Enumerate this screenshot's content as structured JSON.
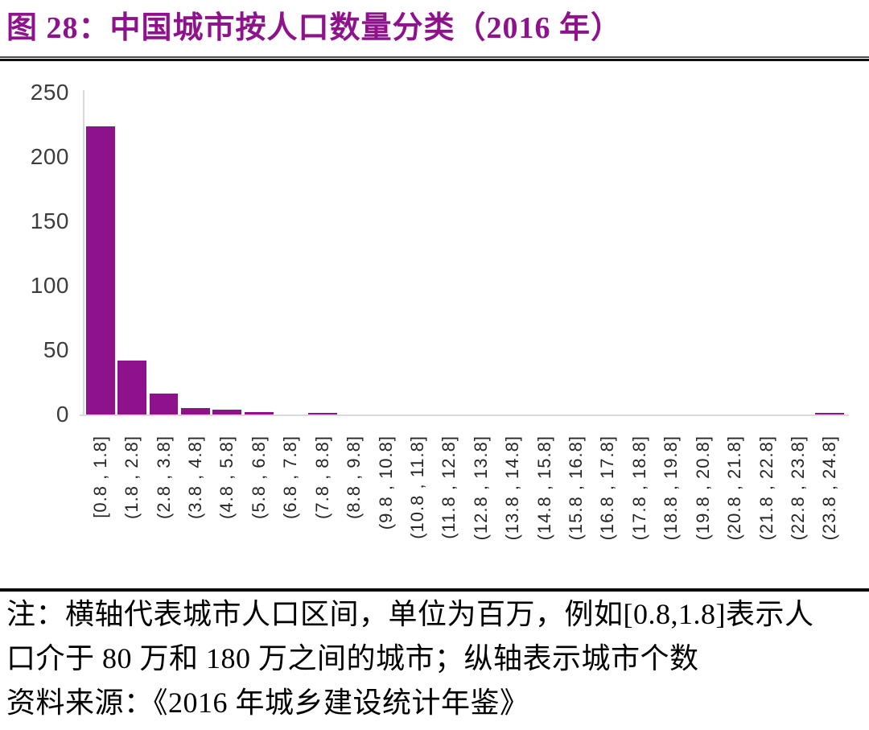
{
  "title": "图 28：中国城市按人口数量分类（2016 年）",
  "notes": {
    "line1": "注：横轴代表城市人口区间，单位为百万，例如[0.8,1.8]表示人",
    "line2": "口介于 80 万和 180 万之间的城市；纵轴表示城市个数",
    "source": "资料来源：《2016 年城乡建设统计年鉴》"
  },
  "colors": {
    "bar": "#8d128b",
    "title_text": "#8d128b",
    "axis_line": "#d9d9d9",
    "tick_label": "#3d3d3d",
    "note_text": "#000000"
  },
  "chart_data": {
    "type": "bar",
    "title": "中国城市按人口数量分类（2016 年）",
    "categories": [
      "[0.8 , 1.8]",
      "(1.8 , 2.8]",
      "(2.8 , 3.8]",
      "(3.8 , 4.8]",
      "(4.8 , 5.8]",
      "(5.8 , 6.8]",
      "(6.8 , 7.8]",
      "(7.8 , 8.8]",
      "(8.8 , 9.8]",
      "(9.8 , 10.8]",
      "(10.8 , 11.8]",
      "(11.8 , 12.8]",
      "(12.8 , 13.8]",
      "(13.8 , 14.8]",
      "(14.8 , 15.8]",
      "(15.8 , 16.8]",
      "(16.8 , 17.8]",
      "(17.8 , 18.8]",
      "(18.8 , 19.8]",
      "(19.8 , 20.8]",
      "(20.8 , 21.8]",
      "(21.8 , 22.8]",
      "(22.8 , 23.8]",
      "(23.8 , 24.8]"
    ],
    "values": [
      224,
      42,
      16,
      5,
      4,
      2,
      0,
      1,
      0,
      0,
      0,
      0,
      0,
      0,
      0,
      0,
      0,
      0,
      0,
      0,
      0,
      0,
      0,
      1
    ],
    "xlabel": "",
    "ylabel": "",
    "ylim": [
      0,
      250
    ],
    "yticks": [
      0,
      50,
      100,
      150,
      200,
      250
    ],
    "grid": false,
    "legend": "none"
  }
}
